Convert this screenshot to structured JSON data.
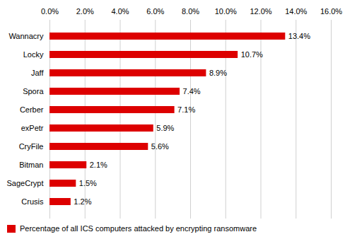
{
  "chart_data": {
    "type": "bar",
    "orientation": "horizontal",
    "categories": [
      "Wannacry",
      "Locky",
      "Jaff",
      "Spora",
      "Cerber",
      "exPetr",
      "CryFile",
      "Bitman",
      "SageCrypt",
      "Crusis"
    ],
    "series": [
      {
        "name": "Percentage of all ICS computers attacked by encrypting ransomware",
        "color": "#dd0000",
        "values": [
          13.4,
          10.7,
          8.9,
          7.4,
          7.1,
          5.9,
          5.6,
          2.1,
          1.5,
          1.2
        ],
        "value_labels": [
          "13.4%",
          "10.7%",
          "8.9%",
          "7.4%",
          "7.1%",
          "5.9%",
          "5.6%",
          "2.1%",
          "1.5%",
          "1.2%"
        ]
      }
    ],
    "data_labels": true,
    "xlim": [
      0,
      16.0
    ],
    "xticks": [
      {
        "value": 0,
        "label": "0.0%"
      },
      {
        "value": 2,
        "label": "2.0%"
      },
      {
        "value": 4,
        "label": "4.0%"
      },
      {
        "value": 6,
        "label": "6.0%"
      },
      {
        "value": 8,
        "label": "8.0%"
      },
      {
        "value": 10,
        "label": "10.0%"
      },
      {
        "value": 12,
        "label": "12.0%"
      },
      {
        "value": 14,
        "label": "14.0%"
      },
      {
        "value": 16,
        "label": "16.0%"
      }
    ],
    "grid": true,
    "legend": "bottom"
  }
}
